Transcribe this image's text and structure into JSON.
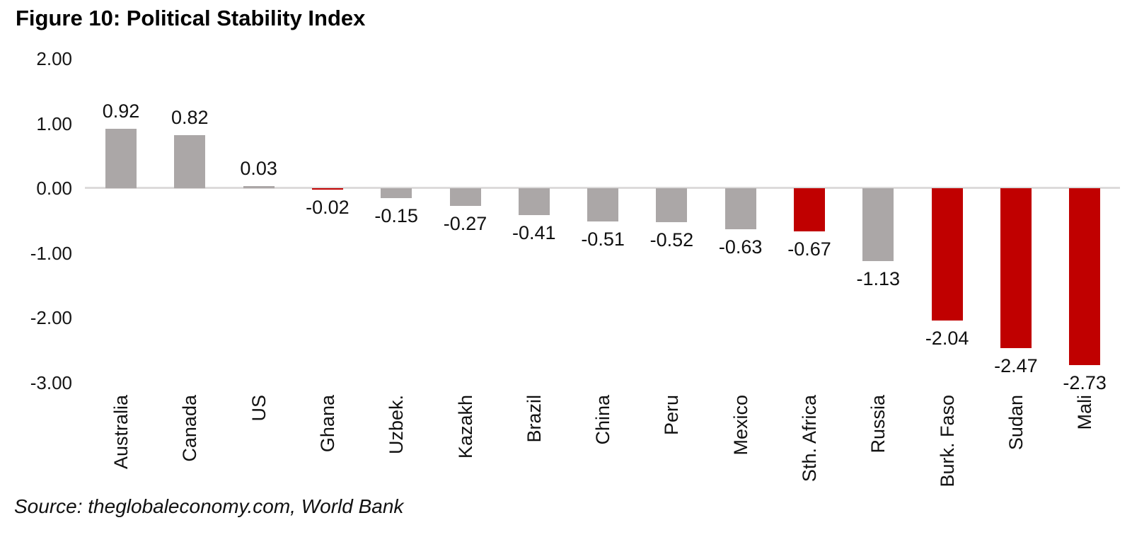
{
  "figure": {
    "title": "Figure 10: Political Stability Index",
    "source": "Source: theglobaleconomy.com, World Bank"
  },
  "colors": {
    "bar_default": "#aba7a7",
    "bar_highlight": "#c00000",
    "axis_line": "#dddbdb",
    "text": "#111111"
  },
  "chart_data": {
    "type": "bar",
    "title": "Figure 10: Political Stability Index",
    "categories": [
      "Australia",
      "Canada",
      "US",
      "Ghana",
      "Uzbek.",
      "Kazakh",
      "Brazil",
      "China",
      "Peru",
      "Mexico",
      "Sth. Africa",
      "Russia",
      "Burk. Faso",
      "Sudan",
      "Mali"
    ],
    "values": [
      0.92,
      0.82,
      0.03,
      -0.02,
      -0.15,
      -0.27,
      -0.41,
      -0.51,
      -0.52,
      -0.63,
      -0.67,
      -1.13,
      -2.04,
      -2.47,
      -2.73
    ],
    "value_labels": [
      "0.92",
      "0.82",
      "0.03",
      "-0.02",
      "-0.15",
      "-0.27",
      "-0.41",
      "-0.51",
      "-0.52",
      "-0.63",
      "-0.67",
      "-1.13",
      "-2.04",
      "-2.47",
      "-2.73"
    ],
    "bar_colors": [
      "default",
      "default",
      "default",
      "highlight",
      "default",
      "default",
      "default",
      "default",
      "default",
      "default",
      "highlight",
      "default",
      "highlight",
      "highlight",
      "highlight"
    ],
    "y_ticks": [
      "2.00",
      "1.00",
      "0.00",
      "-1.00",
      "-2.00",
      "-3.00"
    ],
    "y_tick_values": [
      2,
      1,
      0,
      -1,
      -2,
      -3
    ],
    "ylim": [
      -3,
      2
    ],
    "xlabel": "",
    "ylabel": "",
    "grid": false,
    "legend": false,
    "source": "Source: theglobaleconomy.com, World Bank"
  }
}
